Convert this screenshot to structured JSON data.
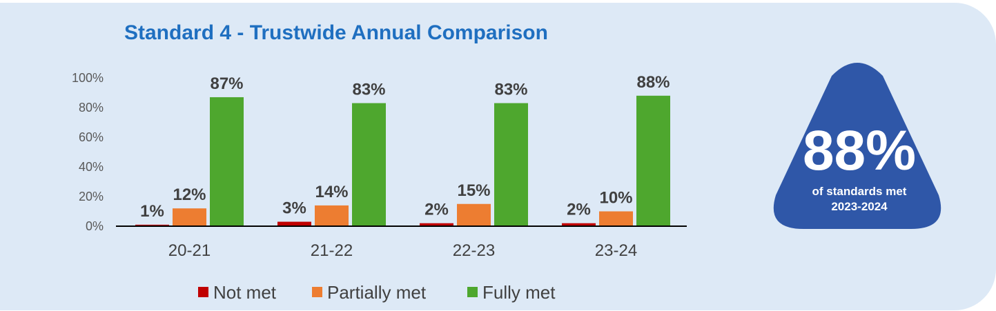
{
  "chart_data": {
    "type": "bar",
    "title": "Standard 4 - Trustwide Annual Comparison",
    "categories": [
      "20-21",
      "21-22",
      "22-23",
      "23-24"
    ],
    "series": [
      {
        "name": "Not met",
        "color": "#c00000",
        "values": [
          1,
          3,
          2,
          2
        ]
      },
      {
        "name": "Partially met",
        "color": "#ed7d31",
        "values": [
          12,
          14,
          15,
          10
        ]
      },
      {
        "name": "Fully met",
        "color": "#4ea72e",
        "values": [
          87,
          83,
          83,
          88
        ]
      }
    ],
    "data_labels": [
      "1%",
      "12%",
      "87%",
      "3%",
      "14%",
      "83%",
      "2%",
      "15%",
      "83%",
      "2%",
      "10%",
      "88%"
    ],
    "yticks": [
      "0%",
      "20%",
      "40%",
      "60%",
      "80%",
      "100%"
    ],
    "ylim": [
      0,
      100
    ],
    "legend_position": "bottom",
    "grid": false
  },
  "callout": {
    "value": "88%",
    "line1": "of standards met",
    "line2": "2023-2024",
    "color": "#2f57a8",
    "shape": "rounded-triangle"
  }
}
